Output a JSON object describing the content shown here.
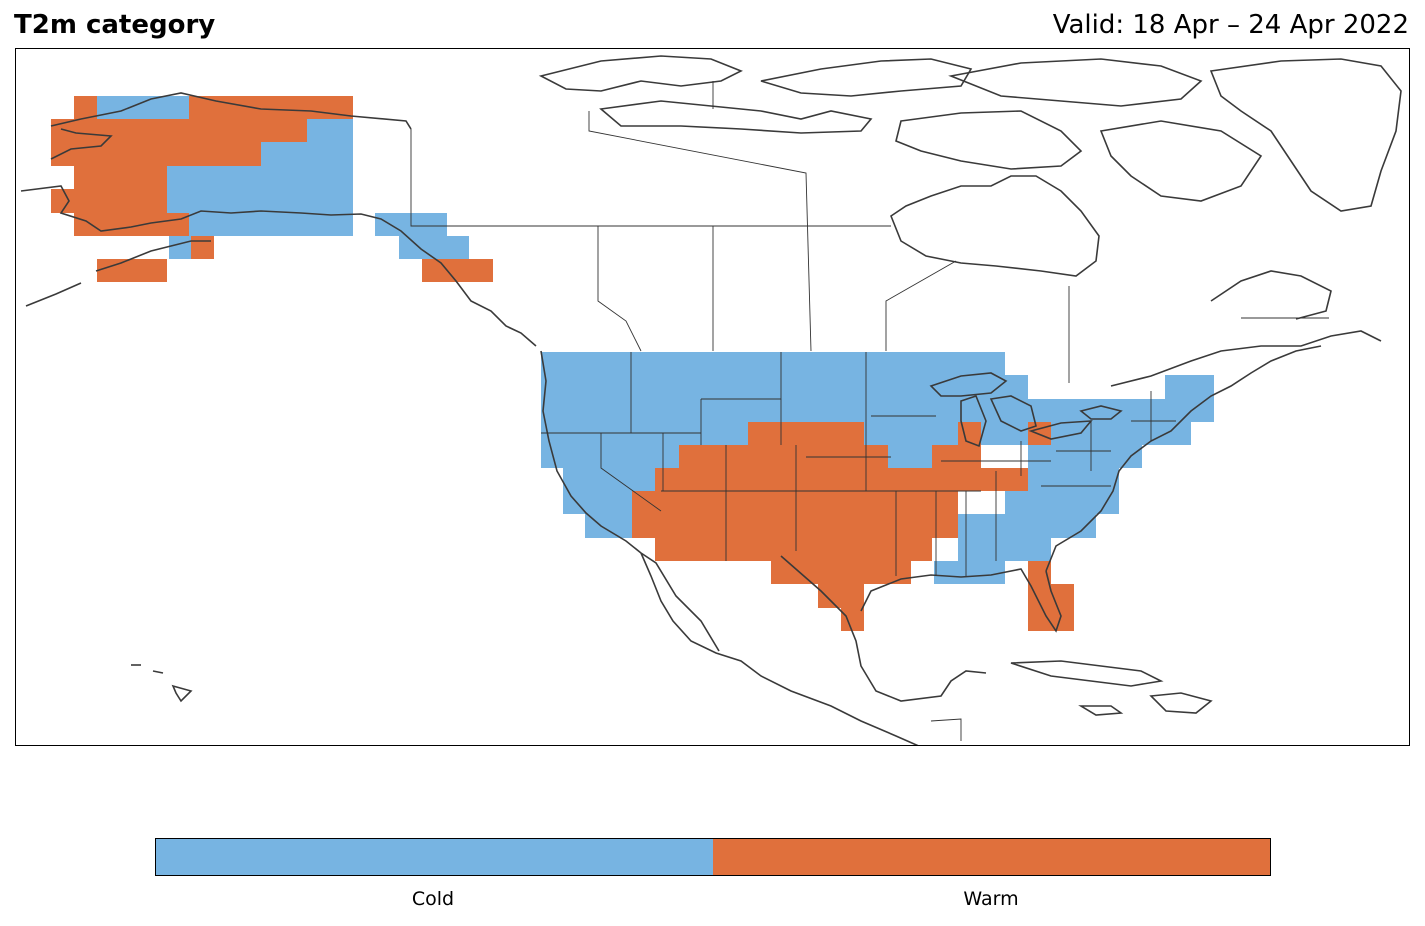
{
  "title": "T2m category",
  "valid": "Valid: 18 Apr – 24 Apr 2022",
  "colors": {
    "cold": "#77b4e2",
    "warm": "#e0703c",
    "coast": "#3a3a3a",
    "border": "#333333"
  },
  "legend": {
    "cold": "Cold",
    "warm": "Warm"
  },
  "categories": [
    "Cold",
    "Warm"
  ]
}
